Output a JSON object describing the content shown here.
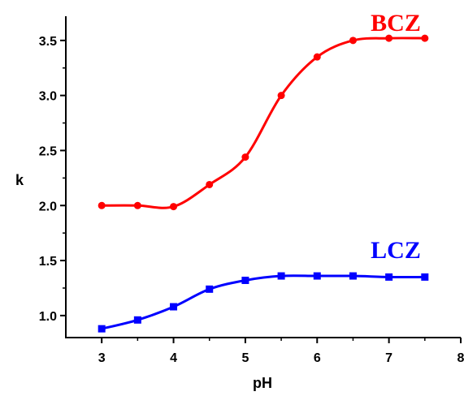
{
  "chart_data": {
    "type": "line",
    "xlabel": "pH",
    "ylabel": "k",
    "xlim": [
      2.5,
      8
    ],
    "ylim": [
      0.8,
      3.72
    ],
    "xticks": [
      "3",
      "4",
      "5",
      "6",
      "7",
      "8"
    ],
    "yticks": [
      "1.0",
      "1.5",
      "2.0",
      "2.5",
      "3.0",
      "3.5"
    ],
    "grid": false,
    "legend": "none",
    "x": [
      3,
      3.5,
      4,
      4.5,
      5,
      5.5,
      6,
      6.5,
      7,
      7.5
    ],
    "series": [
      {
        "name": "BCZ",
        "color": "#ff0000",
        "marker": "circle",
        "values": [
          2.0,
          2.0,
          1.99,
          2.19,
          2.44,
          3.0,
          3.35,
          3.5,
          3.52,
          3.52
        ]
      },
      {
        "name": "LCZ",
        "color": "#0000ff",
        "marker": "square",
        "values": [
          0.88,
          0.96,
          1.08,
          1.24,
          1.32,
          1.36,
          1.36,
          1.36,
          1.35,
          1.35
        ]
      }
    ]
  }
}
